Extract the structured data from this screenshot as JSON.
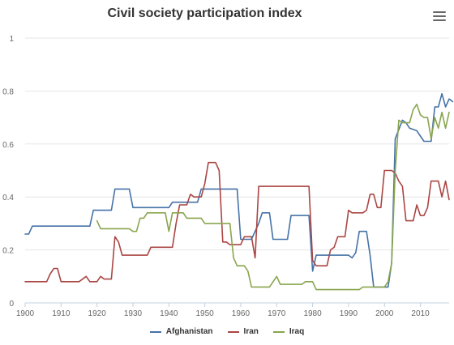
{
  "chart_data": {
    "type": "line",
    "title": "Civil society participation index",
    "xlabel": "",
    "ylabel": "",
    "xlim": [
      1900,
      2018
    ],
    "ylim": [
      0,
      1
    ],
    "x_ticks": [
      "1900",
      "1910",
      "1920",
      "1930",
      "1940",
      "1950",
      "1960",
      "1970",
      "1980",
      "1990",
      "2000",
      "2010"
    ],
    "y_ticks": [
      "0",
      "0.2",
      "0.4",
      "0.6",
      "0.8",
      "1"
    ],
    "grid": "horizontal",
    "legend_position": "bottom",
    "series": [
      {
        "name": "Afghanistan",
        "color": "#4572a7",
        "points": [
          [
            1900,
            0.26
          ],
          [
            1901,
            0.26
          ],
          [
            1902,
            0.29
          ],
          [
            1918,
            0.29
          ],
          [
            1919,
            0.35
          ],
          [
            1924,
            0.35
          ],
          [
            1925,
            0.43
          ],
          [
            1929,
            0.43
          ],
          [
            1930,
            0.36
          ],
          [
            1940,
            0.36
          ],
          [
            1941,
            0.38
          ],
          [
            1948,
            0.38
          ],
          [
            1949,
            0.43
          ],
          [
            1959,
            0.43
          ],
          [
            1960,
            0.24
          ],
          [
            1963,
            0.24
          ],
          [
            1965,
            0.3
          ],
          [
            1966,
            0.34
          ],
          [
            1968,
            0.34
          ],
          [
            1969,
            0.24
          ],
          [
            1973,
            0.24
          ],
          [
            1974,
            0.33
          ],
          [
            1979,
            0.33
          ],
          [
            1980,
            0.12
          ],
          [
            1981,
            0.18
          ],
          [
            1990,
            0.18
          ],
          [
            1991,
            0.17
          ],
          [
            1992,
            0.19
          ],
          [
            1993,
            0.27
          ],
          [
            1995,
            0.27
          ],
          [
            1996,
            0.18
          ],
          [
            1997,
            0.06
          ],
          [
            2001,
            0.06
          ],
          [
            2002,
            0.15
          ],
          [
            2003,
            0.62
          ],
          [
            2005,
            0.69
          ],
          [
            2006,
            0.68
          ],
          [
            2007,
            0.66
          ],
          [
            2009,
            0.65
          ],
          [
            2010,
            0.63
          ],
          [
            2011,
            0.61
          ],
          [
            2013,
            0.61
          ],
          [
            2014,
            0.74
          ],
          [
            2015,
            0.74
          ],
          [
            2016,
            0.79
          ],
          [
            2017,
            0.74
          ],
          [
            2018,
            0.77
          ],
          [
            2019,
            0.76
          ]
        ]
      },
      {
        "name": "Iran",
        "color": "#aa4643",
        "points": [
          [
            1900,
            0.08
          ],
          [
            1906,
            0.08
          ],
          [
            1907,
            0.11
          ],
          [
            1908,
            0.13
          ],
          [
            1909,
            0.13
          ],
          [
            1910,
            0.08
          ],
          [
            1915,
            0.08
          ],
          [
            1917,
            0.1
          ],
          [
            1918,
            0.08
          ],
          [
            1920,
            0.08
          ],
          [
            1921,
            0.1
          ],
          [
            1922,
            0.09
          ],
          [
            1924,
            0.09
          ],
          [
            1925,
            0.25
          ],
          [
            1926,
            0.23
          ],
          [
            1927,
            0.18
          ],
          [
            1934,
            0.18
          ],
          [
            1935,
            0.21
          ],
          [
            1941,
            0.21
          ],
          [
            1942,
            0.3
          ],
          [
            1943,
            0.37
          ],
          [
            1945,
            0.37
          ],
          [
            1946,
            0.41
          ],
          [
            1947,
            0.4
          ],
          [
            1949,
            0.4
          ],
          [
            1950,
            0.45
          ],
          [
            1951,
            0.53
          ],
          [
            1953,
            0.53
          ],
          [
            1954,
            0.5
          ],
          [
            1955,
            0.23
          ],
          [
            1956,
            0.23
          ],
          [
            1957,
            0.22
          ],
          [
            1960,
            0.22
          ],
          [
            1961,
            0.25
          ],
          [
            1963,
            0.25
          ],
          [
            1964,
            0.17
          ],
          [
            1965,
            0.44
          ],
          [
            1979,
            0.44
          ],
          [
            1980,
            0.16
          ],
          [
            1981,
            0.14
          ],
          [
            1984,
            0.14
          ],
          [
            1985,
            0.2
          ],
          [
            1986,
            0.21
          ],
          [
            1987,
            0.25
          ],
          [
            1989,
            0.25
          ],
          [
            1990,
            0.35
          ],
          [
            1991,
            0.34
          ],
          [
            1994,
            0.34
          ],
          [
            1995,
            0.35
          ],
          [
            1996,
            0.41
          ],
          [
            1997,
            0.41
          ],
          [
            1998,
            0.36
          ],
          [
            1999,
            0.36
          ],
          [
            2000,
            0.5
          ],
          [
            2002,
            0.5
          ],
          [
            2003,
            0.49
          ],
          [
            2004,
            0.46
          ],
          [
            2005,
            0.44
          ],
          [
            2006,
            0.31
          ],
          [
            2008,
            0.31
          ],
          [
            2009,
            0.37
          ],
          [
            2010,
            0.33
          ],
          [
            2011,
            0.33
          ],
          [
            2012,
            0.36
          ],
          [
            2013,
            0.46
          ],
          [
            2015,
            0.46
          ],
          [
            2016,
            0.4
          ],
          [
            2017,
            0.46
          ],
          [
            2018,
            0.39
          ]
        ]
      },
      {
        "name": "Iraq",
        "color": "#89a54e",
        "points": [
          [
            1920,
            0.31
          ],
          [
            1921,
            0.28
          ],
          [
            1929,
            0.28
          ],
          [
            1930,
            0.27
          ],
          [
            1931,
            0.27
          ],
          [
            1932,
            0.32
          ],
          [
            1933,
            0.32
          ],
          [
            1934,
            0.34
          ],
          [
            1939,
            0.34
          ],
          [
            1940,
            0.27
          ],
          [
            1941,
            0.34
          ],
          [
            1944,
            0.34
          ],
          [
            1945,
            0.32
          ],
          [
            1949,
            0.32
          ],
          [
            1950,
            0.3
          ],
          [
            1957,
            0.3
          ],
          [
            1958,
            0.17
          ],
          [
            1959,
            0.14
          ],
          [
            1961,
            0.14
          ],
          [
            1962,
            0.12
          ],
          [
            1963,
            0.06
          ],
          [
            1968,
            0.06
          ],
          [
            1970,
            0.1
          ],
          [
            1971,
            0.07
          ],
          [
            1977,
            0.07
          ],
          [
            1978,
            0.08
          ],
          [
            1980,
            0.08
          ],
          [
            1981,
            0.05
          ],
          [
            1993,
            0.05
          ],
          [
            1994,
            0.06
          ],
          [
            2000,
            0.06
          ],
          [
            2001,
            0.08
          ],
          [
            2002,
            0.15
          ],
          [
            2003,
            0.5
          ],
          [
            2004,
            0.69
          ],
          [
            2005,
            0.68
          ],
          [
            2007,
            0.68
          ],
          [
            2008,
            0.73
          ],
          [
            2009,
            0.75
          ],
          [
            2010,
            0.71
          ],
          [
            2011,
            0.7
          ],
          [
            2012,
            0.7
          ],
          [
            2013,
            0.62
          ],
          [
            2014,
            0.7
          ],
          [
            2015,
            0.66
          ],
          [
            2016,
            0.72
          ],
          [
            2017,
            0.66
          ],
          [
            2018,
            0.72
          ]
        ]
      }
    ]
  },
  "menu": {
    "icon": "hamburger-menu-icon"
  }
}
